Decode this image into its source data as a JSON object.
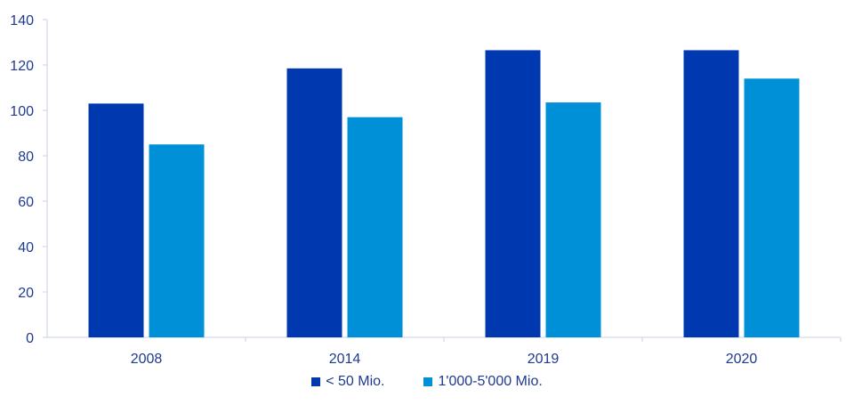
{
  "chart_data": {
    "type": "bar",
    "categories": [
      "2008",
      "2014",
      "2019",
      "2020"
    ],
    "series": [
      {
        "name": "< 50 Mio.",
        "values": [
          103,
          118.5,
          126.5,
          126.5
        ],
        "color": "#0038b0"
      },
      {
        "name": "1'000-5'000 Mio.",
        "values": [
          85,
          97,
          103.5,
          114
        ],
        "color": "#0090d8"
      }
    ],
    "ylim": [
      0,
      140
    ],
    "yticks": [
      "0",
      "20",
      "40",
      "60",
      "80",
      "100",
      "120",
      "140"
    ],
    "grid": false,
    "legend_position": "bottom-center",
    "axis_color": "#c8d0e8",
    "text_color": "#1f3a8f"
  }
}
